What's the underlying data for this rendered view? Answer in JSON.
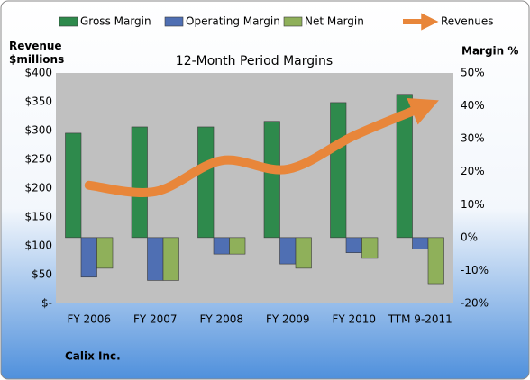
{
  "chart_data": {
    "type": "bar",
    "title": "12-Month Period Margins",
    "ylabel": "Revenue $millions",
    "y2label": "Margin %",
    "source": "Calix Inc.",
    "categories": [
      "FY 2006",
      "FY 2007",
      "FY 2008",
      "FY 2009",
      "FY 2010",
      "TTM 9-2011"
    ],
    "series": [
      {
        "name": "Gross Margin",
        "color": "#2e8a4c",
        "type": "bar",
        "axis": "y2",
        "values": [
          31.7,
          33.6,
          33.6,
          35.3,
          41,
          43.5
        ]
      },
      {
        "name": "Operating Margin",
        "color": "#4f6fb3",
        "type": "bar",
        "axis": "y2",
        "values": [
          -12,
          -13,
          -5,
          -8,
          -4.6,
          -3.5
        ]
      },
      {
        "name": "Net Margin",
        "color": "#8fb05a",
        "type": "bar",
        "axis": "y2",
        "values": [
          -9.3,
          -13,
          -5,
          -9.3,
          -6.3,
          -14
        ]
      },
      {
        "name": "Revenues",
        "color": "#e8863a",
        "type": "line",
        "values": [
          205,
          194,
          248,
          233,
          291,
          339
        ]
      }
    ],
    "ylim": [
      0,
      400
    ],
    "yticks": [
      {
        "value": 0,
        "label": "$-"
      },
      {
        "value": 50,
        "label": "$50"
      },
      {
        "value": 100,
        "label": "$100"
      },
      {
        "value": 150,
        "label": "$150"
      },
      {
        "value": 200,
        "label": "$200"
      },
      {
        "value": 250,
        "label": "$250"
      },
      {
        "value": 300,
        "label": "$300"
      },
      {
        "value": 350,
        "label": "$350"
      },
      {
        "value": 400,
        "label": "$400"
      }
    ],
    "y2lim": [
      -20,
      50
    ],
    "y2ticks": [
      {
        "value": -20,
        "label": "-20%"
      },
      {
        "value": -10,
        "label": "-10%"
      },
      {
        "value": 0,
        "label": "0%"
      },
      {
        "value": 10,
        "label": "10%"
      },
      {
        "value": 20,
        "label": "20%"
      },
      {
        "value": 30,
        "label": "30%"
      },
      {
        "value": 40,
        "label": "40%"
      },
      {
        "value": 50,
        "label": "50%"
      }
    ],
    "grid": false
  }
}
